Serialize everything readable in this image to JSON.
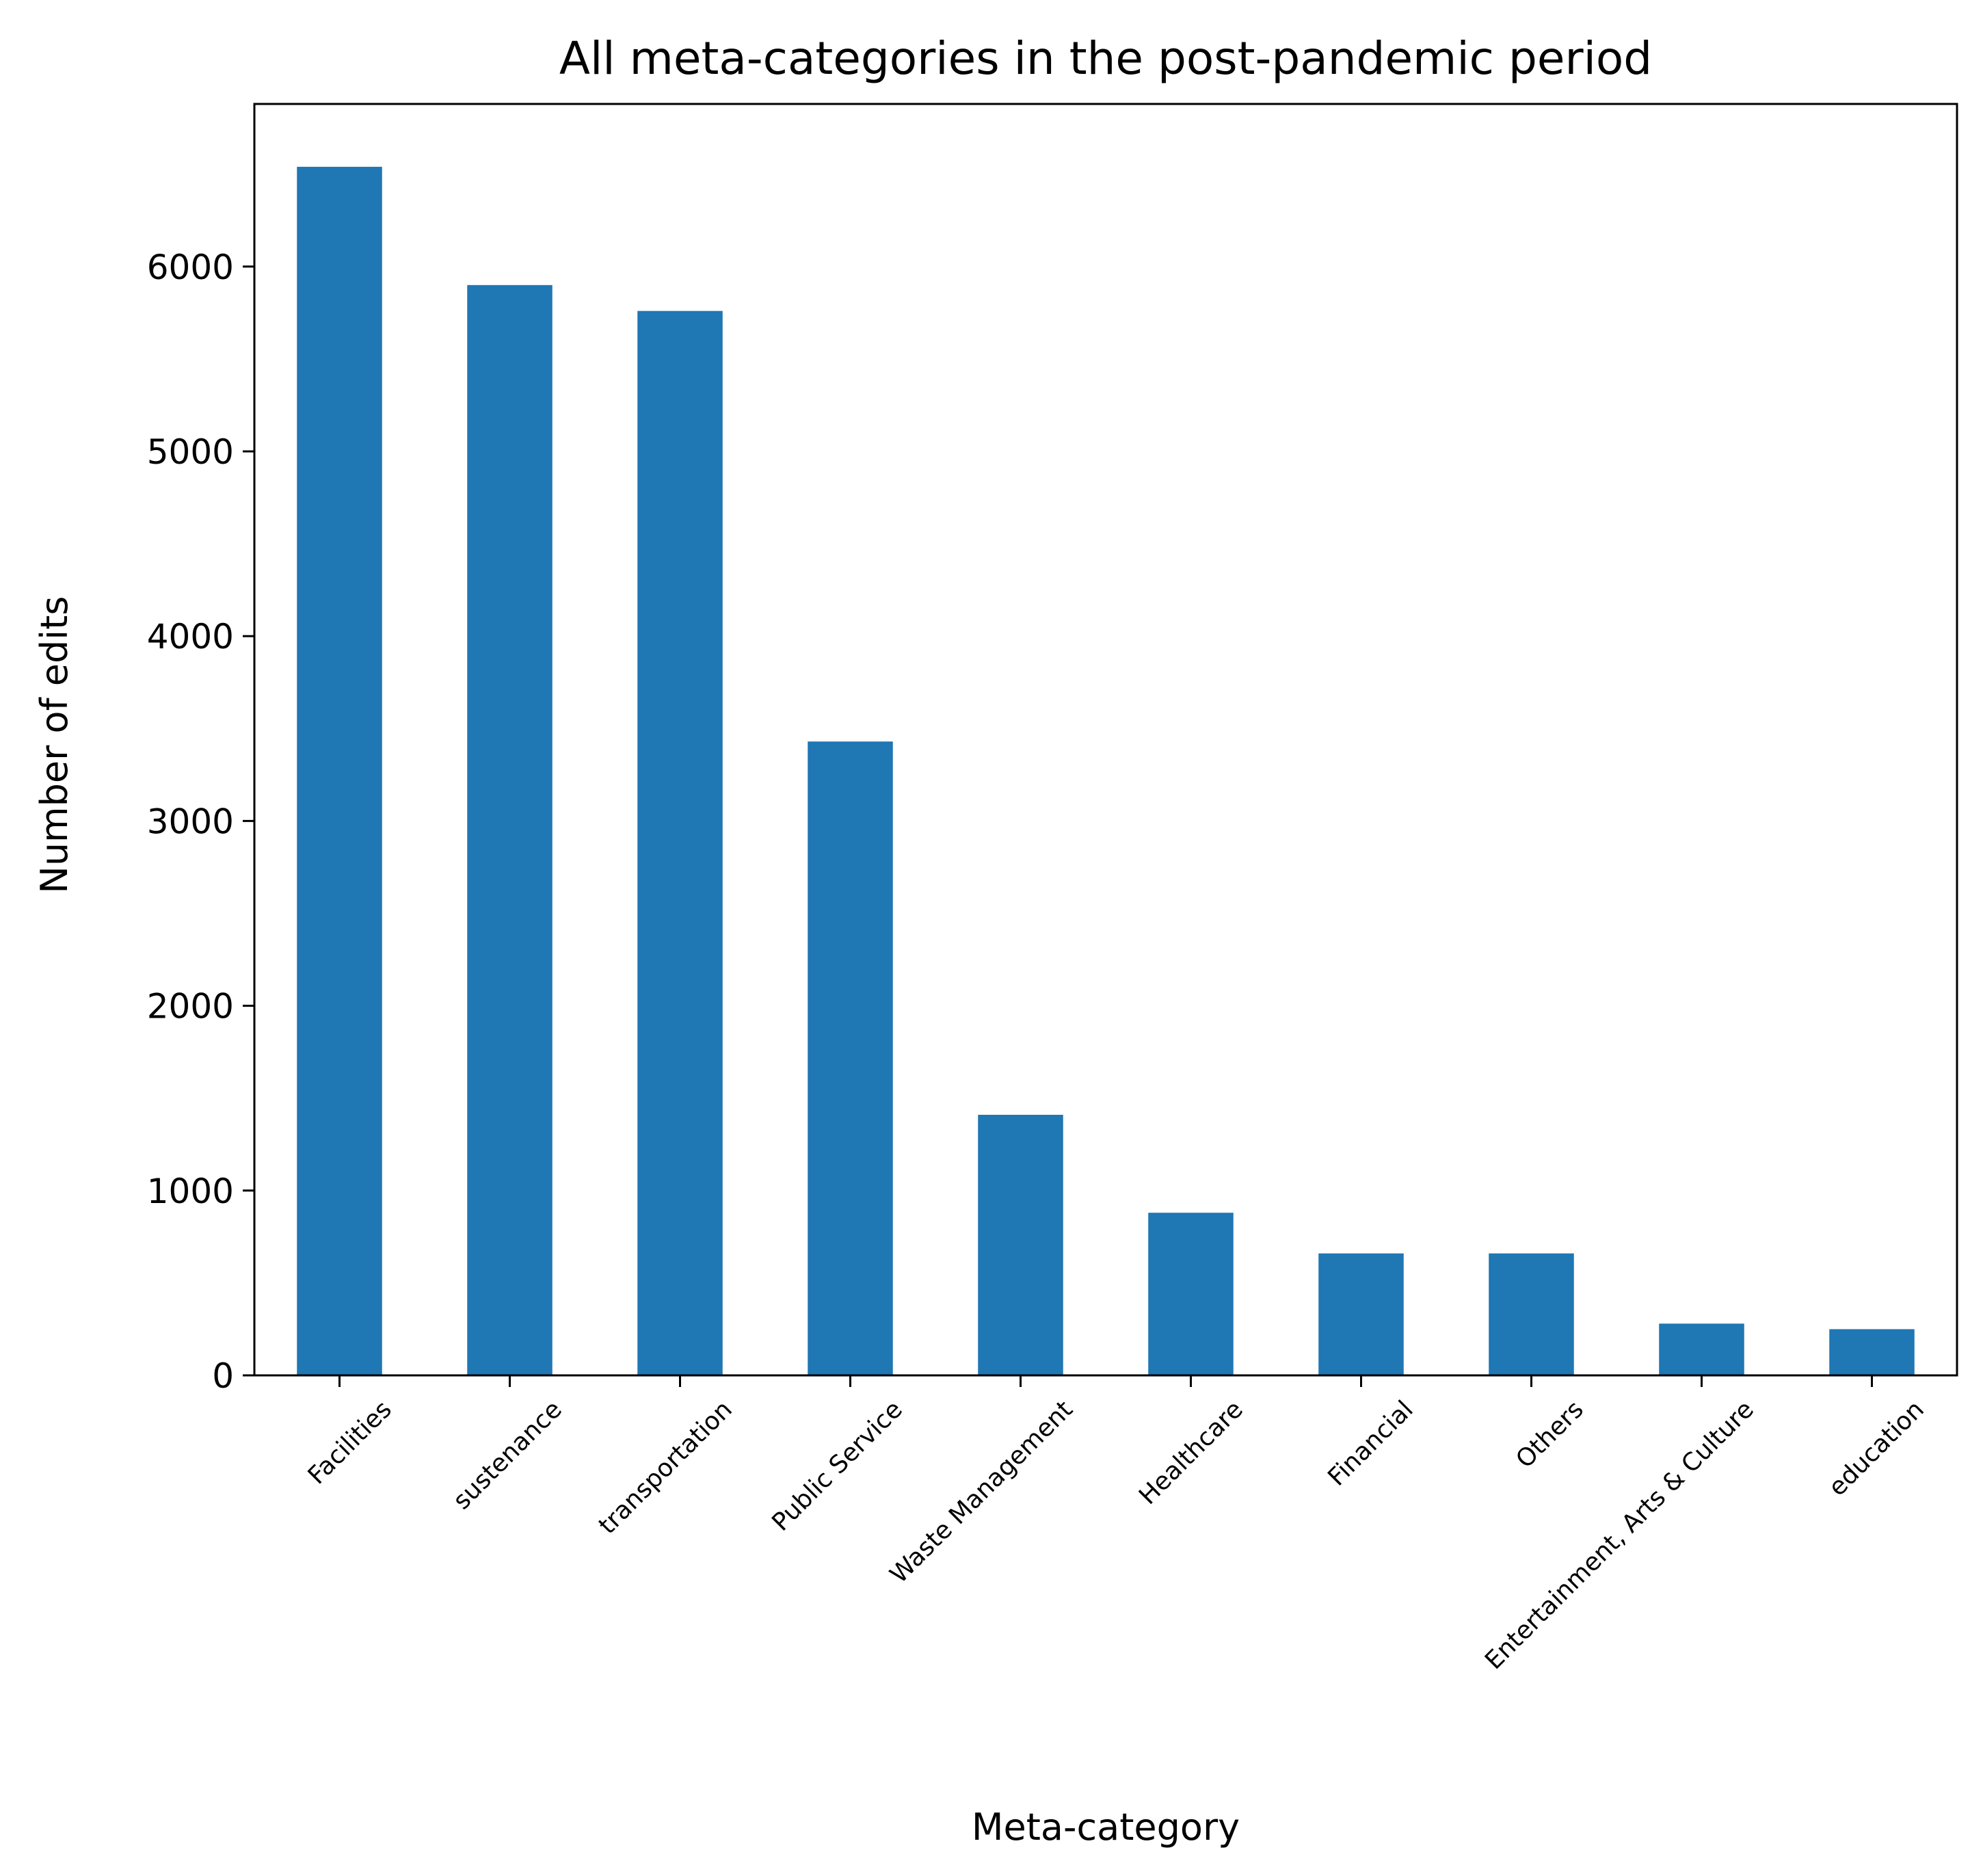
{
  "chart_data": {
    "type": "bar",
    "title": "All meta-categories in the post-pandemic period",
    "xlabel": "Meta-category",
    "ylabel": "Number of edits",
    "categories": [
      "Facilities",
      "sustenance",
      "transportation",
      "Public Service",
      "Waste Management",
      "Healthcare",
      "Financial",
      "Others",
      "Entertainment, Arts & Culture",
      "education"
    ],
    "values": [
      6540,
      5900,
      5760,
      3430,
      1410,
      880,
      660,
      660,
      280,
      250
    ],
    "yticks": [
      0,
      1000,
      2000,
      3000,
      4000,
      5000,
      6000
    ],
    "ylim": [
      0,
      6880
    ],
    "grid": false,
    "legend": false,
    "bar_color": "#1f77b4"
  }
}
